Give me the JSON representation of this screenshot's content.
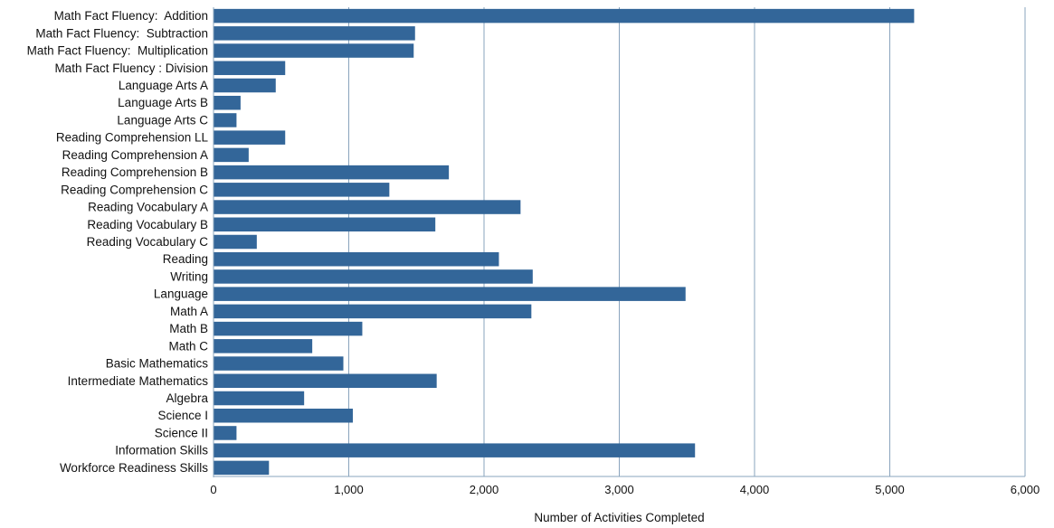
{
  "chart_data": {
    "type": "bar",
    "orientation": "horizontal",
    "title": "",
    "xlabel": "Number of Activities Completed",
    "ylabel": "",
    "xlim": [
      0,
      6000
    ],
    "x_ticks": [
      0,
      1000,
      2000,
      3000,
      4000,
      5000,
      6000
    ],
    "x_tick_labels": [
      "0",
      "1,000",
      "2,000",
      "3,000",
      "4,000",
      "5,000",
      "6,000"
    ],
    "grid": "vertical",
    "bar_color": "#336699",
    "grid_color": "#8aa4bd",
    "axis_color": "#8aa4bd",
    "categories": [
      "Math Fact Fluency:  Addition",
      "Math Fact Fluency:  Subtraction",
      "Math Fact Fluency:  Multiplication",
      "Math Fact Fluency : Division",
      "Language Arts A",
      "Language Arts B",
      "Language Arts C",
      "Reading Comprehension LL",
      "Reading Comprehension A",
      "Reading Comprehension B",
      "Reading Comprehension C",
      "Reading Vocabulary A",
      "Reading Vocabulary B",
      "Reading Vocabulary C",
      "Reading",
      "Writing",
      "Language",
      "Math A",
      "Math B",
      "Math C",
      "Basic Mathematics",
      "Intermediate Mathematics",
      "Algebra",
      "Science I",
      "Science II",
      "Information Skills",
      "Workforce Readiness Skills"
    ],
    "values": [
      5180,
      1490,
      1480,
      530,
      460,
      200,
      170,
      530,
      260,
      1740,
      1300,
      2270,
      1640,
      320,
      2110,
      2360,
      3490,
      2350,
      1100,
      730,
      960,
      1650,
      670,
      1030,
      170,
      3560,
      410
    ]
  }
}
